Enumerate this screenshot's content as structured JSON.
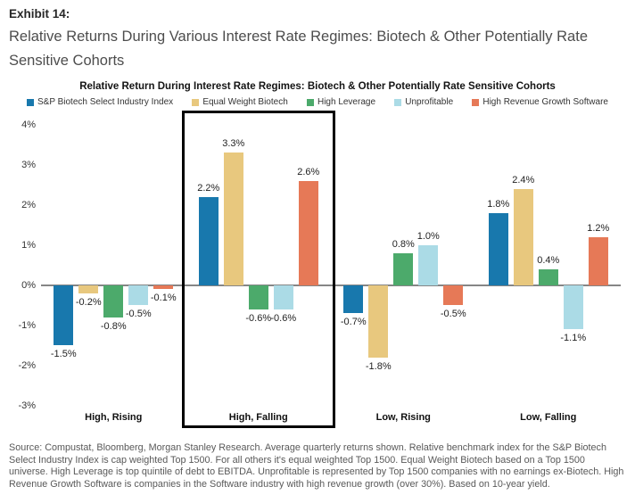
{
  "page": {
    "exhibit_label": "Exhibit 14:",
    "subtitle": "Relative Returns During Various Interest Rate Regimes: Biotech & Other Potentially Rate Sensitive Cohorts"
  },
  "chart_data": {
    "type": "bar",
    "title": "Relative Return During Interest Rate Regimes: Biotech & Other Potentially Rate Sensitive Cohorts",
    "categories": [
      "High, Rising",
      "High, Falling",
      "Low, Rising",
      "Low, Falling"
    ],
    "series": [
      {
        "name": "S&P Biotech Select Industry Index",
        "color": "#1878ad",
        "values": [
          -1.5,
          2.2,
          -0.7,
          1.8
        ]
      },
      {
        "name": "Equal Weight Biotech",
        "color": "#e8c87e",
        "values": [
          -0.2,
          3.3,
          -1.8,
          2.4
        ]
      },
      {
        "name": "High Leverage",
        "color": "#4caa6b",
        "values": [
          -0.8,
          -0.6,
          0.8,
          0.4
        ]
      },
      {
        "name": "Unprofitable",
        "color": "#abdbe6",
        "values": [
          -0.5,
          -0.6,
          1.0,
          -1.1
        ]
      },
      {
        "name": "High Revenue Growth Software",
        "color": "#e67957",
        "values": [
          -0.1,
          2.6,
          -0.5,
          1.2
        ]
      }
    ],
    "value_suffix": "%",
    "ylim": [
      -3,
      4
    ],
    "y_ticks": [
      "4%",
      "3%",
      "2%",
      "1%",
      "0%",
      "-1%",
      "-2%",
      "-3%"
    ],
    "grid": false,
    "legend_position": "top",
    "zero_line_color": "#868686",
    "highlight": {
      "category": "High, Falling",
      "category_index": 1,
      "style": "black-outline-box"
    }
  },
  "footer": {
    "source_text": "Source: Compustat, Bloomberg, Morgan Stanley Research. Average quarterly returns shown. Relative benchmark index for the S&P Biotech Select Industry Index is cap weighted Top 1500. For all others it's equal weighted Top 1500. Equal Weight Biotech based on a Top 1500 universe. High Leverage is top quintile of debt to EBITDA. Unprofitable is represented by Top 1500 companies with no earnings ex-Biotech. High Revenue Growth Software is companies in the Software industry with high revenue growth (over 30%). Based on 10-year yield."
  }
}
